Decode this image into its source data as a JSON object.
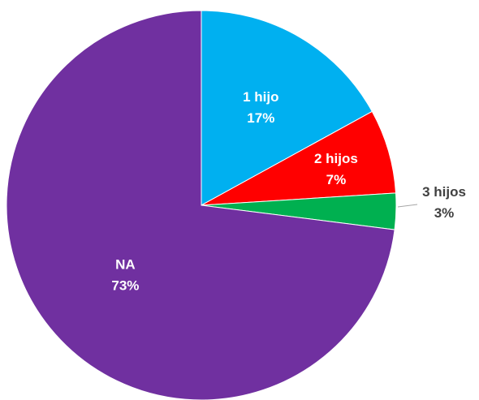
{
  "chart_data": {
    "type": "pie",
    "title": "",
    "start_angle_deg": 0,
    "direction": "clockwise",
    "legend": "none",
    "slices": [
      {
        "name": "1 hijo",
        "value": 17,
        "value_label": "17%",
        "color": "#00B0F0"
      },
      {
        "name": "2 hijos",
        "value": 7,
        "value_label": "7%",
        "color": "#FF0000"
      },
      {
        "name": "3 hijos",
        "value": 3,
        "value_label": "3%",
        "color": "#00B050"
      },
      {
        "name": "NA",
        "value": 73,
        "value_label": "73%",
        "color": "#7030A0"
      }
    ]
  }
}
